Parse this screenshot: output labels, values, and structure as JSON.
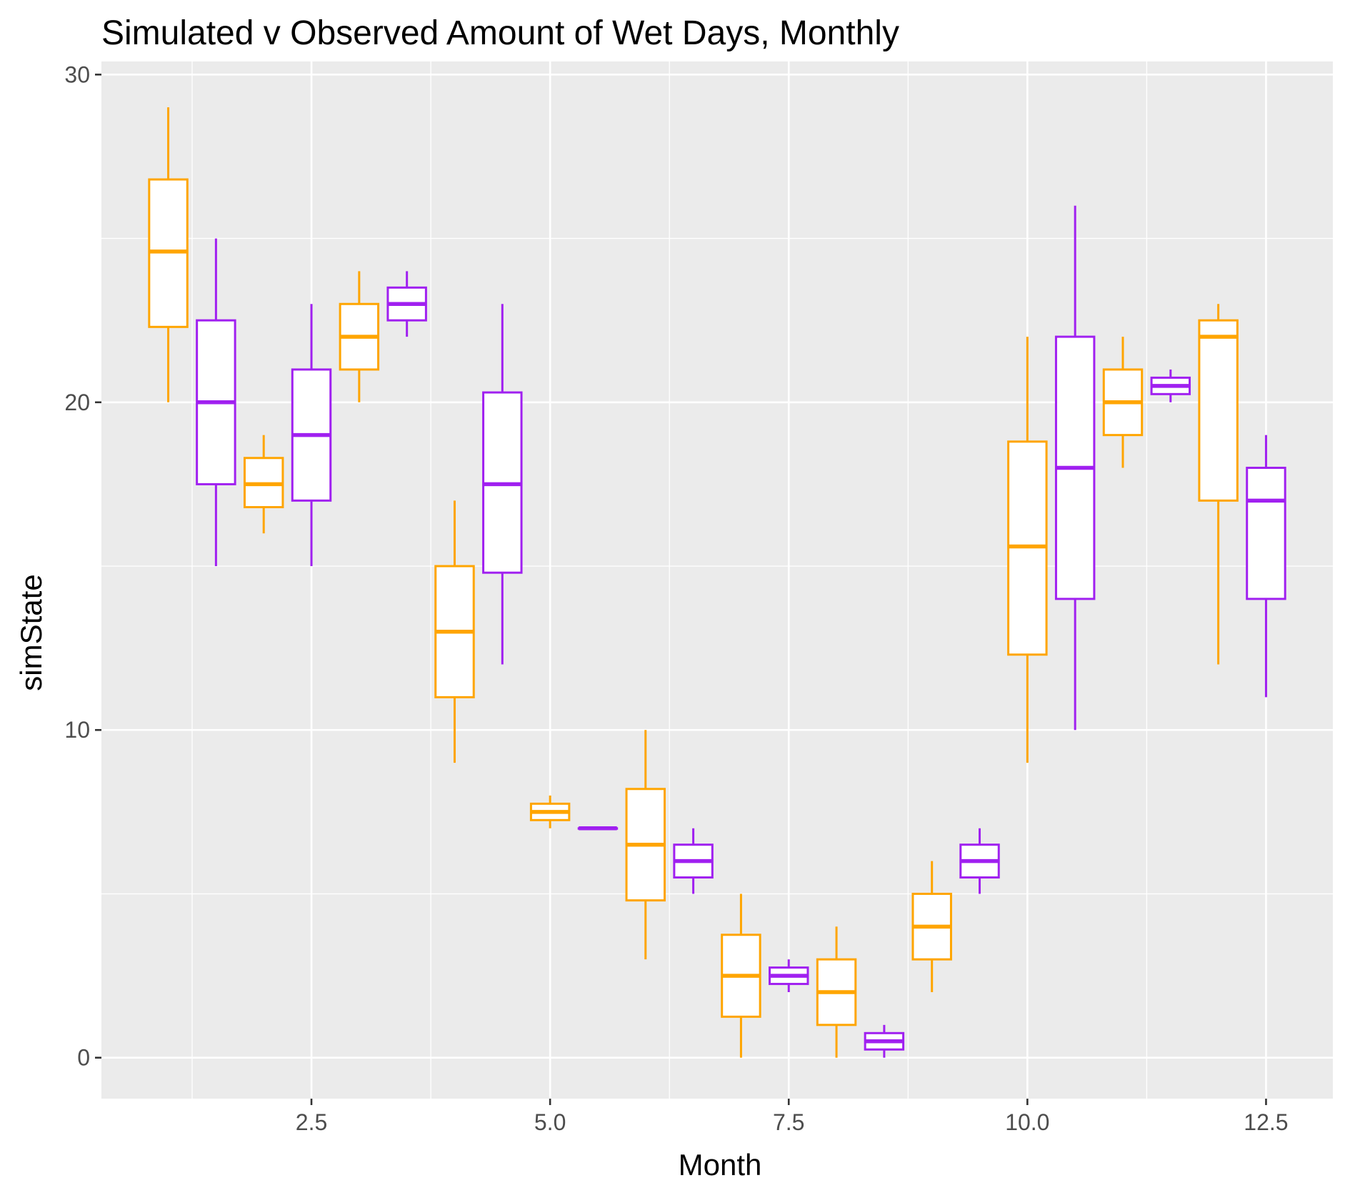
{
  "chart_data": {
    "type": "boxplot",
    "title": "Simulated v Observed Amount of Wet Days, Monthly",
    "xlabel": "Month",
    "ylabel": "simState",
    "xlim": [
      0.3,
      13.2
    ],
    "ylim": [
      -1.25,
      30.4
    ],
    "x_ticks": [
      2.5,
      5.0,
      7.5,
      10.0,
      12.5
    ],
    "x_tick_labels": [
      "2.5",
      "5.0",
      "7.5",
      "10.0",
      "12.5"
    ],
    "y_ticks": [
      0,
      10,
      20,
      30
    ],
    "y_tick_labels": [
      "0",
      "10",
      "20",
      "30"
    ],
    "grid": true,
    "legend": "none",
    "box_width": 0.4,
    "colors": {
      "a": "#FFA500",
      "b": "#A020F0",
      "panel": "#EBEBEB",
      "grid": "#FFFFFF"
    },
    "series": [
      {
        "color_key": "a",
        "boxes": [
          {
            "x": 1.0,
            "min": 20,
            "q1": 22.3,
            "median": 24.6,
            "q3": 26.8,
            "max": 29
          },
          {
            "x": 2.0,
            "min": 16,
            "q1": 16.8,
            "median": 17.5,
            "q3": 18.3,
            "max": 19
          },
          {
            "x": 3.0,
            "min": 20,
            "q1": 21,
            "median": 22,
            "q3": 23,
            "max": 24
          },
          {
            "x": 4.0,
            "min": 9,
            "q1": 11,
            "median": 13,
            "q3": 15,
            "max": 17
          },
          {
            "x": 5.0,
            "min": 7,
            "q1": 7.25,
            "median": 7.5,
            "q3": 7.75,
            "max": 8
          },
          {
            "x": 6.0,
            "min": 3,
            "q1": 4.8,
            "median": 6.5,
            "q3": 8.2,
            "max": 10
          },
          {
            "x": 7.0,
            "min": 0,
            "q1": 1.25,
            "median": 2.5,
            "q3": 3.75,
            "max": 5
          },
          {
            "x": 8.0,
            "min": 0,
            "q1": 1,
            "median": 2,
            "q3": 3,
            "max": 4
          },
          {
            "x": 9.0,
            "min": 2,
            "q1": 3,
            "median": 4,
            "q3": 5,
            "max": 6
          },
          {
            "x": 10.0,
            "min": 9,
            "q1": 12.3,
            "median": 15.6,
            "q3": 18.8,
            "max": 22
          },
          {
            "x": 11.0,
            "min": 18,
            "q1": 19,
            "median": 20,
            "q3": 21,
            "max": 22
          },
          {
            "x": 12.0,
            "min": 12,
            "q1": 17,
            "median": 22,
            "q3": 22.5,
            "max": 23
          }
        ]
      },
      {
        "color_key": "b",
        "boxes": [
          {
            "x": 1.5,
            "min": 15,
            "q1": 17.5,
            "median": 20,
            "q3": 22.5,
            "max": 25
          },
          {
            "x": 2.5,
            "min": 15,
            "q1": 17,
            "median": 19,
            "q3": 21,
            "max": 23
          },
          {
            "x": 3.5,
            "min": 22,
            "q1": 22.5,
            "median": 23,
            "q3": 23.5,
            "max": 24
          },
          {
            "x": 4.5,
            "min": 12,
            "q1": 14.8,
            "median": 17.5,
            "q3": 20.3,
            "max": 23
          },
          {
            "x": 5.5,
            "min": 7,
            "q1": 7,
            "median": 7,
            "q3": 7,
            "max": 7
          },
          {
            "x": 6.5,
            "min": 5,
            "q1": 5.5,
            "median": 6,
            "q3": 6.5,
            "max": 7
          },
          {
            "x": 7.5,
            "min": 2,
            "q1": 2.25,
            "median": 2.5,
            "q3": 2.75,
            "max": 3
          },
          {
            "x": 8.5,
            "min": 0,
            "q1": 0.25,
            "median": 0.5,
            "q3": 0.75,
            "max": 1
          },
          {
            "x": 9.5,
            "min": 5,
            "q1": 5.5,
            "median": 6,
            "q3": 6.5,
            "max": 7
          },
          {
            "x": 10.5,
            "min": 10,
            "q1": 14,
            "median": 18,
            "q3": 22,
            "max": 26
          },
          {
            "x": 11.5,
            "min": 20,
            "q1": 20.25,
            "median": 20.5,
            "q3": 20.75,
            "max": 21
          },
          {
            "x": 12.5,
            "min": 11,
            "q1": 14,
            "median": 17,
            "q3": 18,
            "max": 19
          }
        ]
      }
    ]
  }
}
